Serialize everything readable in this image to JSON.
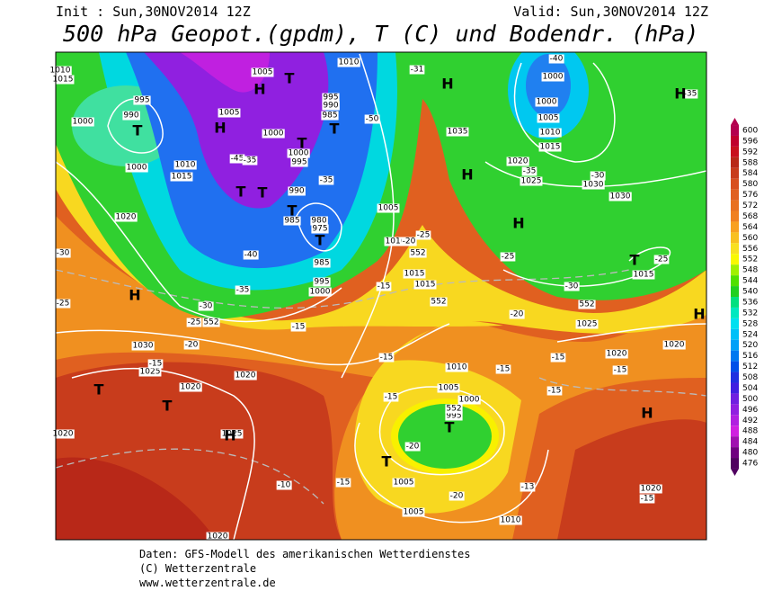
{
  "header": {
    "init": "Init : Sun,30NOV2014 12Z",
    "valid": "Valid: Sun,30NOV2014 12Z",
    "title": "500 hPa Geopot.(gpdm), T (C) und Bodendr. (hPa)"
  },
  "colorbar": {
    "ticks": [
      600,
      596,
      592,
      588,
      584,
      580,
      576,
      572,
      568,
      564,
      560,
      556,
      552,
      548,
      544,
      540,
      536,
      532,
      528,
      524,
      520,
      516,
      512,
      508,
      504,
      500,
      496,
      492,
      488,
      484,
      480,
      476
    ],
    "colors": [
      "#b4004f",
      "#c0002e",
      "#c8101e",
      "#b82818",
      "#c83c1c",
      "#d85020",
      "#e06020",
      "#e87020",
      "#f08020",
      "#f8a020",
      "#f8c020",
      "#f8e020",
      "#f8f800",
      "#a0f000",
      "#50e000",
      "#20d020",
      "#00e080",
      "#00e8c0",
      "#00e0f0",
      "#00c0f8",
      "#00a0f8",
      "#0078f0",
      "#0050e8",
      "#2030e0",
      "#4020e0",
      "#7020e0",
      "#9020e0",
      "#b020e0",
      "#d020e0",
      "#a010b0",
      "#700080",
      "#500060"
    ]
  },
  "map_labels": {
    "pressure": [
      "1005",
      "1010",
      "995",
      "990",
      "1000",
      "1005",
      "995",
      "990",
      "985",
      "1000",
      "1000",
      "995",
      "1010",
      "1015",
      "1000",
      "990",
      "985",
      "980",
      "975",
      "985",
      "995",
      "1000",
      "1020",
      "1005",
      "1010",
      "1015",
      "1015",
      "1030",
      "1025",
      "1020",
      "1020",
      "1020",
      "1025",
      "1010",
      "1005",
      "1000",
      "995",
      "1005",
      "1005",
      "1010",
      "1020",
      "1000",
      "1000",
      "1005",
      "1010",
      "1015",
      "1020",
      "1025",
      "1030",
      "1030",
      "1035",
      "1015",
      "1025",
      "1020",
      "1020",
      "1020",
      "1010",
      "1015"
    ],
    "temperature": [
      "-31",
      "-50",
      "-45",
      "-35",
      "-35",
      "-40",
      "-35",
      "-30",
      "-25",
      "-25",
      "-30",
      "-20",
      "-15",
      "-15",
      "-15",
      "-20",
      "-25",
      "-25",
      "-25",
      "-30",
      "-20",
      "-15",
      "-15",
      "-15",
      "-15",
      "-15",
      "-15",
      "-20",
      "-20",
      "-15",
      "-10",
      "-13",
      "-15",
      "-35",
      "-30",
      "-40",
      "-35"
    ],
    "centers": [
      "H",
      "H",
      "H",
      "H",
      "T",
      "T",
      "T",
      "T",
      "T",
      "T",
      "T",
      "T",
      "H",
      "T",
      "T",
      "H",
      "H",
      "H",
      "T",
      "H",
      "H",
      "T",
      "T"
    ],
    "geopotential": [
      "552",
      "552",
      "552",
      "552",
      "552"
    ]
  },
  "footer": [
    "Daten: GFS-Modell des amerikanischen Wetterdienstes",
    "(C) Wetterzentrale",
    "www.wetterzentrale.de"
  ]
}
